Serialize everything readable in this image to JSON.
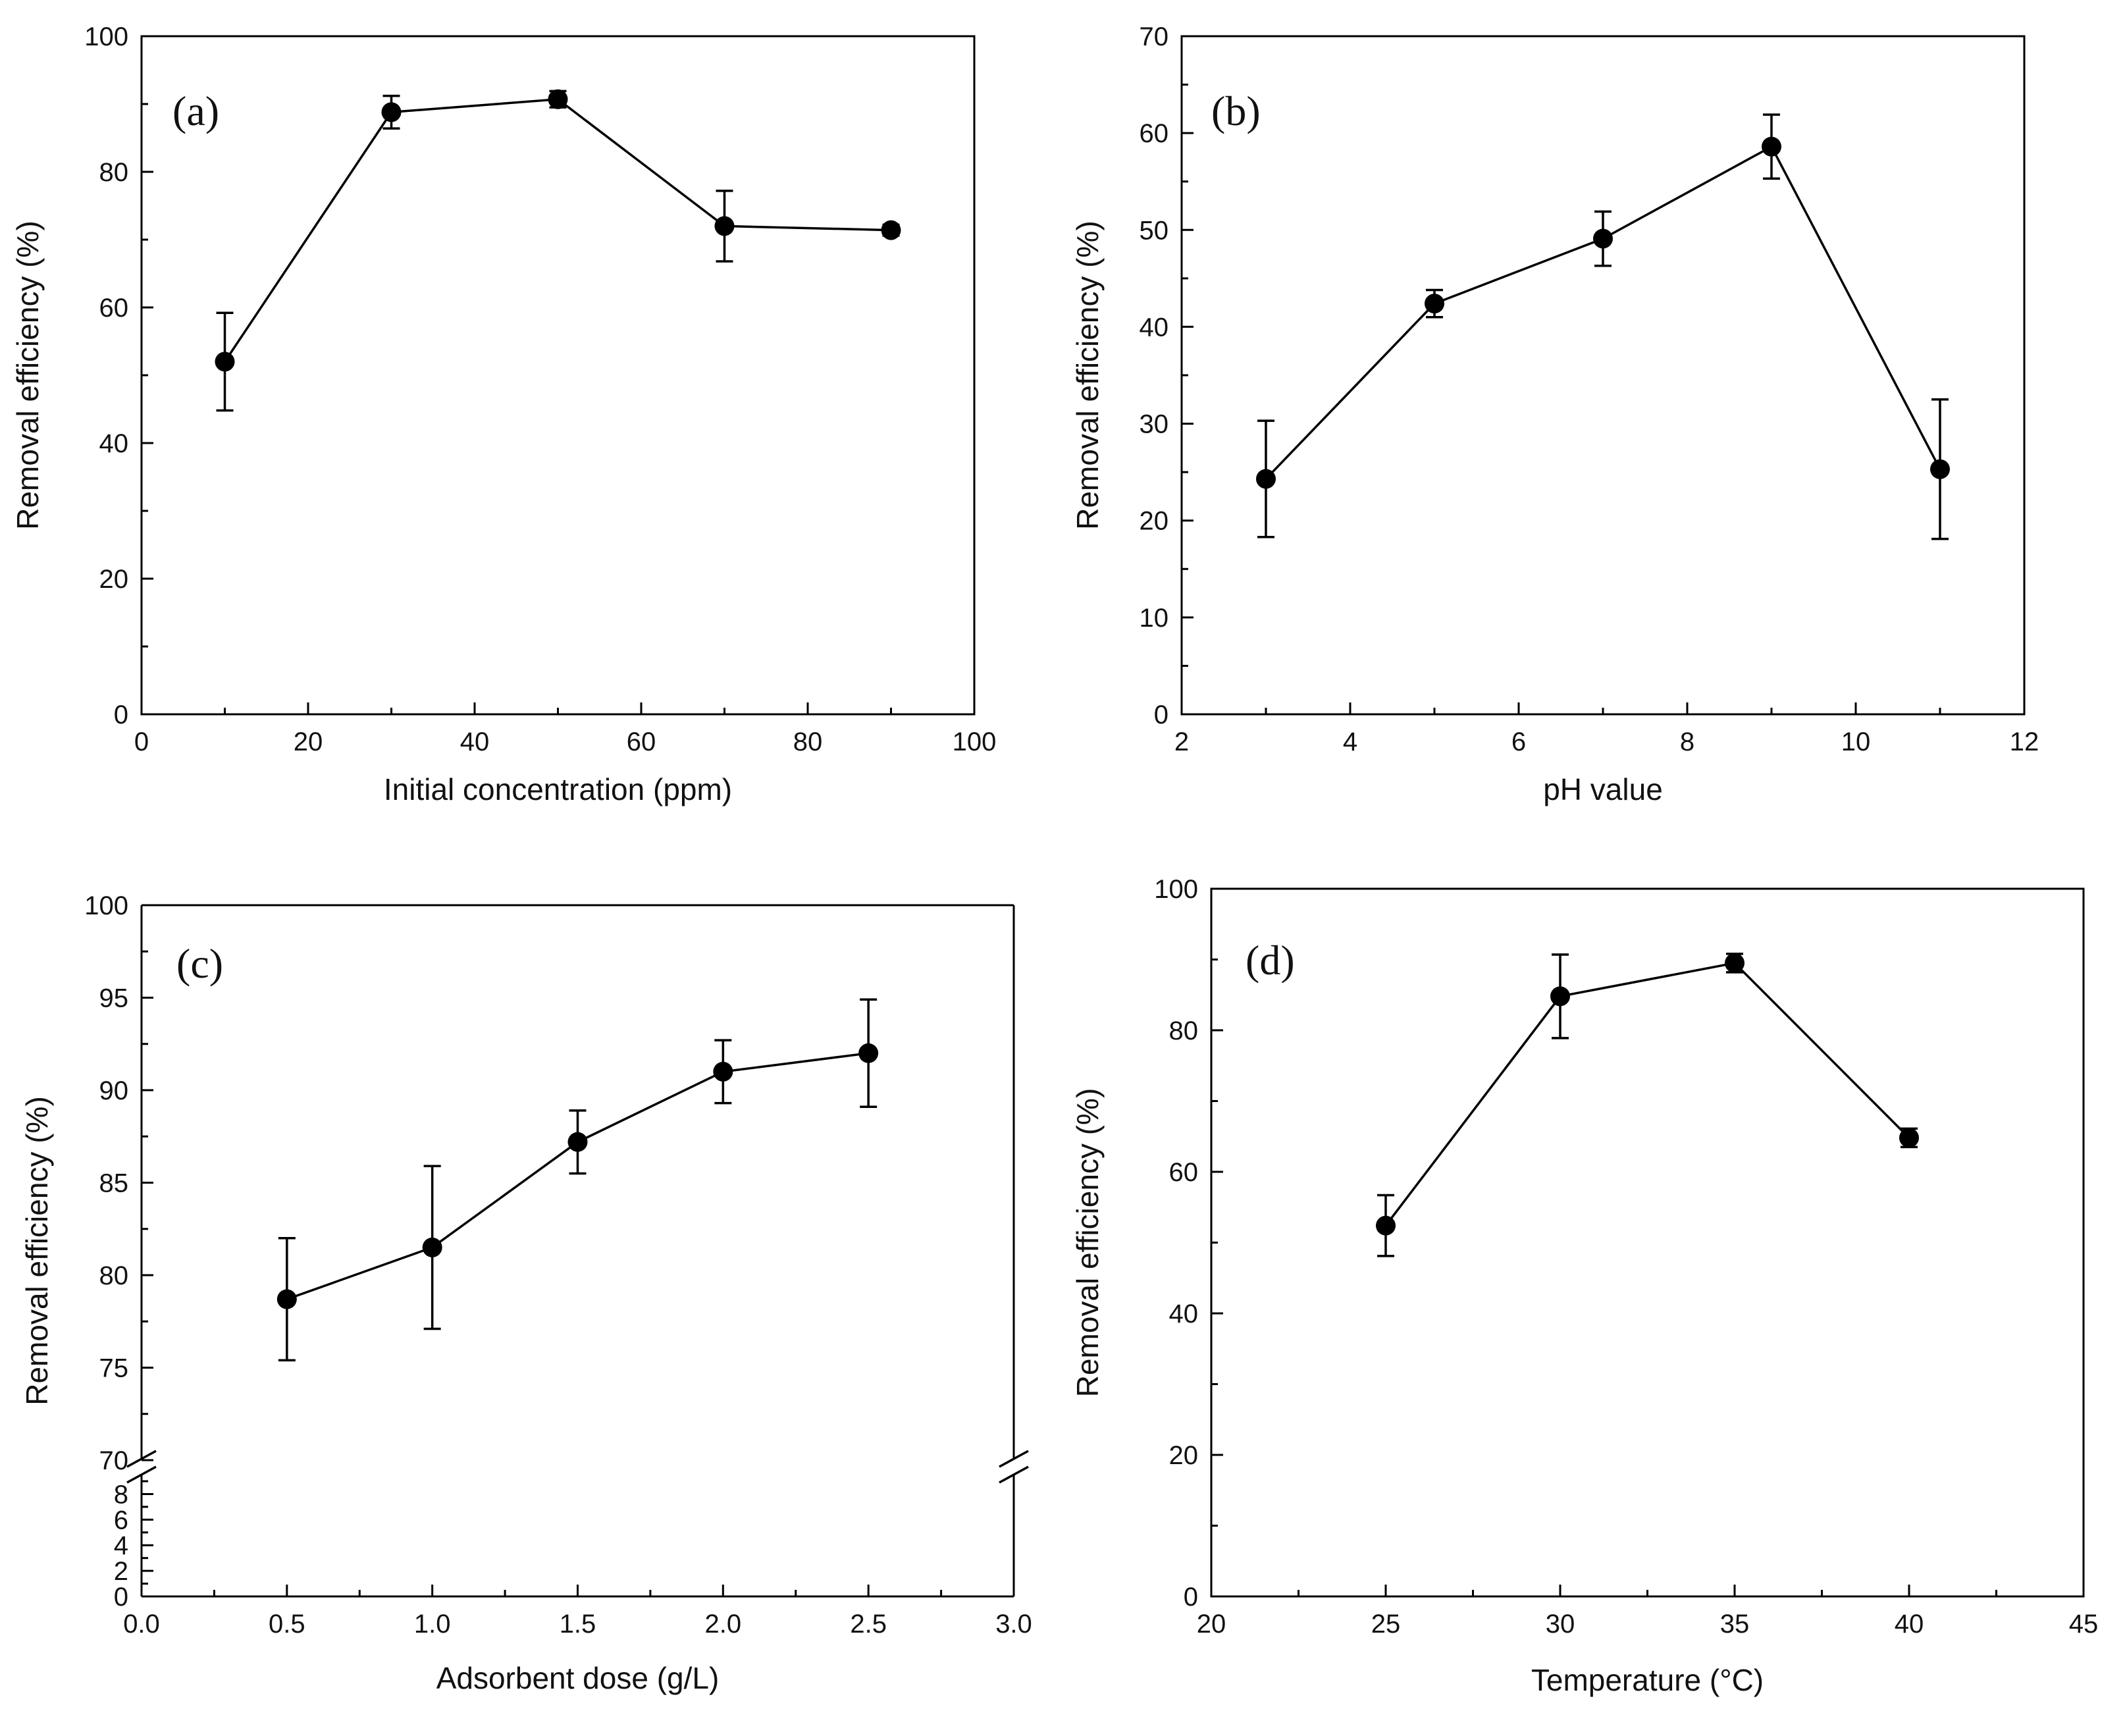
{
  "chart_data": [
    {
      "type": "line",
      "panel_label": "(a)",
      "title": "",
      "xlabel": "Initial concentration (ppm)",
      "ylabel": "Removal efficiency (%)",
      "xlim": [
        0,
        100
      ],
      "ylim": [
        0,
        100
      ],
      "x_major_ticks": [
        0,
        20,
        40,
        60,
        80,
        100
      ],
      "x_tick_labels": [
        "0",
        "20",
        "40",
        "60",
        "80",
        "100"
      ],
      "y_major_ticks": [
        0,
        20,
        40,
        60,
        80,
        100
      ],
      "y_tick_labels": [
        "0",
        "20",
        "40",
        "60",
        "80",
        "100"
      ],
      "grid": false,
      "series": [
        {
          "name": "Removal efficiency",
          "x": [
            10,
            30,
            50,
            70,
            90
          ],
          "values": [
            52,
            88.8,
            90.7,
            72,
            71.4
          ],
          "error": [
            7.2,
            2.4,
            1.2,
            5.2,
            0.8
          ]
        }
      ]
    },
    {
      "type": "line",
      "panel_label": "(b)",
      "title": "",
      "xlabel": "pH value",
      "ylabel": "Removal efficiency (%)",
      "xlim": [
        2,
        12
      ],
      "ylim": [
        0,
        70
      ],
      "x_major_ticks": [
        2,
        4,
        6,
        8,
        10,
        12
      ],
      "x_tick_labels": [
        "2",
        "4",
        "6",
        "8",
        "10",
        "12"
      ],
      "y_major_ticks": [
        0,
        10,
        20,
        30,
        40,
        50,
        60,
        70
      ],
      "y_tick_labels": [
        "0",
        "10",
        "20",
        "30",
        "40",
        "50",
        "60",
        "70"
      ],
      "grid": false,
      "series": [
        {
          "name": "Removal efficiency",
          "x": [
            3,
            5,
            7,
            9,
            11
          ],
          "values": [
            24.3,
            42.4,
            49.1,
            58.6,
            25.3
          ],
          "error": [
            6,
            1.4,
            2.8,
            3.3,
            7.2
          ]
        }
      ]
    },
    {
      "type": "line",
      "panel_label": "(c)",
      "title": "",
      "xlabel": "Adsorbent dose (g/L)",
      "ylabel": "Removal efficiency (%)",
      "xlim": [
        0,
        3
      ],
      "ylim": [
        0,
        100
      ],
      "axis_break": [
        9,
        70
      ],
      "x_major_ticks": [
        0,
        0.5,
        1,
        1.5,
        2,
        2.5,
        3
      ],
      "x_tick_labels": [
        "0.0",
        "0.5",
        "1.0",
        "1.5",
        "2.0",
        "2.5",
        "3.0"
      ],
      "y_major_ticks_lower": [
        0,
        2,
        4,
        6,
        8
      ],
      "y_tick_labels_lower": [
        "0",
        "2",
        "4",
        "6",
        "8"
      ],
      "y_major_ticks_upper": [
        70,
        75,
        80,
        85,
        90,
        95,
        100
      ],
      "y_tick_labels_upper": [
        "70",
        "75",
        "80",
        "85",
        "90",
        "95",
        "100"
      ],
      "grid": false,
      "series": [
        {
          "name": "Removal efficiency",
          "x": [
            0.5,
            1,
            1.5,
            2,
            2.5
          ],
          "values": [
            78.7,
            81.5,
            87.2,
            91,
            92
          ],
          "error": [
            3.3,
            4.4,
            1.7,
            1.7,
            2.9
          ]
        }
      ]
    },
    {
      "type": "line",
      "panel_label": "(d)",
      "title": "",
      "xlabel": "Temperature (°C)",
      "ylabel": "Removal efficiency (%)",
      "xlim": [
        20,
        45
      ],
      "ylim": [
        0,
        100
      ],
      "x_major_ticks": [
        20,
        25,
        30,
        35,
        40,
        45
      ],
      "x_tick_labels": [
        "20",
        "25",
        "30",
        "35",
        "40",
        "45"
      ],
      "y_major_ticks": [
        0,
        20,
        40,
        60,
        80,
        100
      ],
      "y_tick_labels": [
        "0",
        "20",
        "40",
        "60",
        "80",
        "100"
      ],
      "grid": false,
      "series": [
        {
          "name": "Removal efficiency",
          "x": [
            25,
            30,
            35,
            40
          ],
          "values": [
            52.4,
            84.8,
            89.5,
            64.8
          ],
          "error": [
            4.3,
            5.9,
            1.3,
            1.3
          ]
        }
      ]
    }
  ]
}
